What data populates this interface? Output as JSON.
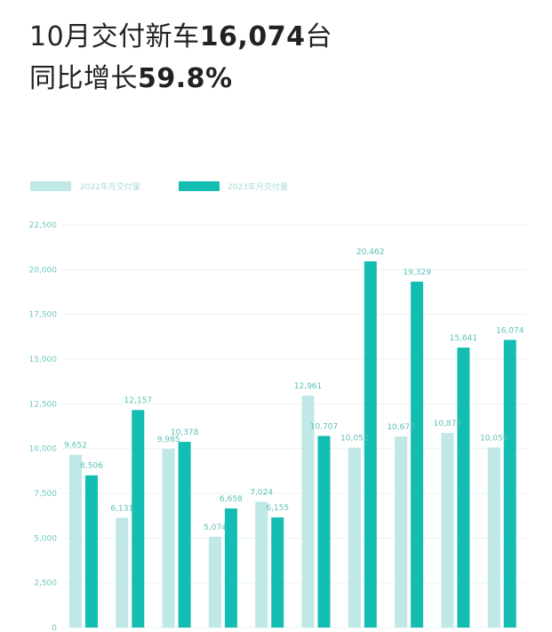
{
  "headline": {
    "line1_prefix": "10月交付新车",
    "line1_number": "16,074",
    "line1_suffix": "台",
    "line2_prefix": "同比增长",
    "line2_number": "59.8%"
  },
  "colors": {
    "series_2022": "#bfe8e6",
    "series_2023": "#14bdb2",
    "grid": "#eaf4f3",
    "tick_text": "#6fc9c2"
  },
  "chart_data": {
    "type": "bar",
    "title": "",
    "xlabel": "",
    "ylabel": "",
    "categories": [
      "",
      "",
      "",
      "",
      "",
      "",
      "",
      "",
      "",
      ""
    ],
    "ylim": [
      0,
      22500
    ],
    "yticks": [
      0,
      2500,
      5000,
      7500,
      10000,
      12500,
      15000,
      17500,
      20000,
      22500
    ],
    "ytick_labels": [
      "0",
      "2,500",
      "5,000",
      "7,500",
      "10,000",
      "12,500",
      "15,000",
      "17,500",
      "20,000",
      "22,500"
    ],
    "grid": true,
    "legend_position": "top-left",
    "series": [
      {
        "name": "2022年月交付量",
        "values": [
          9652,
          6131,
          9985,
          5074,
          7024,
          12961,
          10052,
          10677,
          10878,
          10059
        ],
        "labels": [
          "9,652",
          "6,131",
          "9,985",
          "5,074",
          "7,024",
          "12,961",
          "10,052",
          "10,677",
          "10,878",
          "10,059"
        ]
      },
      {
        "name": "2023年月交付量",
        "values": [
          8506,
          12157,
          10378,
          6658,
          6155,
          10707,
          20462,
          19329,
          15641,
          16074
        ],
        "labels": [
          "8,506",
          "12,157",
          "10,378",
          "6,658",
          "6,155",
          "10,707",
          "20,462",
          "19,329",
          "15,641",
          "16,074"
        ]
      }
    ]
  }
}
